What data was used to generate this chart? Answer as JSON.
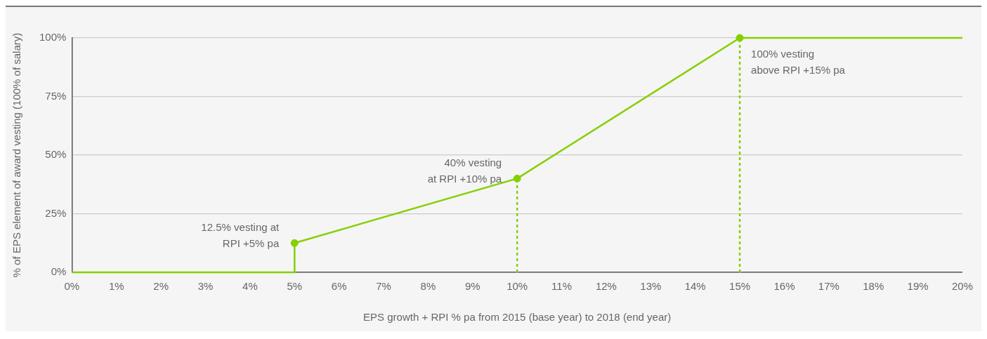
{
  "chart_data": {
    "type": "line",
    "xlabel": "EPS growth + RPI % pa from 2015 (base year) to 2018 (end year)",
    "ylabel": "% of EPS element of award vesting (100% of salary)",
    "xlim": [
      0,
      20
    ],
    "ylim": [
      0,
      100
    ],
    "xticks": [
      {
        "value": 0,
        "label": "0%"
      },
      {
        "value": 1,
        "label": "1%"
      },
      {
        "value": 2,
        "label": "2%"
      },
      {
        "value": 3,
        "label": "3%"
      },
      {
        "value": 4,
        "label": "4%"
      },
      {
        "value": 5,
        "label": "5%"
      },
      {
        "value": 6,
        "label": "6%"
      },
      {
        "value": 7,
        "label": "7%"
      },
      {
        "value": 8,
        "label": "8%"
      },
      {
        "value": 9,
        "label": "9%"
      },
      {
        "value": 10,
        "label": "10%"
      },
      {
        "value": 11,
        "label": "11%"
      },
      {
        "value": 12,
        "label": "12%"
      },
      {
        "value": 13,
        "label": "13%"
      },
      {
        "value": 14,
        "label": "14%"
      },
      {
        "value": 15,
        "label": "15%"
      },
      {
        "value": 16,
        "label": "16%"
      },
      {
        "value": 17,
        "label": "17%"
      },
      {
        "value": 18,
        "label": "18%"
      },
      {
        "value": 19,
        "label": "19%"
      },
      {
        "value": 20,
        "label": "20%"
      }
    ],
    "yticks": [
      {
        "value": 0,
        "label": "0%"
      },
      {
        "value": 25,
        "label": "25%"
      },
      {
        "value": 50,
        "label": "50%"
      },
      {
        "value": 75,
        "label": "75%"
      },
      {
        "value": 100,
        "label": "100%"
      }
    ],
    "grid": "y",
    "legend": false,
    "series": [
      {
        "type": "line",
        "color": "#86d000",
        "marker": "none",
        "line_style": "solid",
        "x": [
          0,
          5,
          5,
          10,
          15,
          20
        ],
        "values": [
          0,
          0,
          12.5,
          40,
          100,
          100
        ]
      },
      {
        "type": "line",
        "color": "#86d000",
        "marker": "none",
        "line_style": "dashed",
        "x": [
          10,
          10
        ],
        "values": [
          0,
          40
        ]
      },
      {
        "type": "line",
        "color": "#86d000",
        "marker": "none",
        "line_style": "dashed",
        "x": [
          15,
          15
        ],
        "values": [
          0,
          100
        ]
      },
      {
        "type": "scatter",
        "color": "#86d000",
        "marker": "circle",
        "x": [
          5,
          10,
          15
        ],
        "values": [
          12.5,
          40,
          100
        ]
      }
    ],
    "annotations": [
      {
        "text": "12.5% vesting at\nRPI +5% pa",
        "x": 5,
        "y": 12.5
      },
      {
        "text": "40% vesting\nat RPI +10% pa",
        "x": 10,
        "y": 40
      },
      {
        "text": "100% vesting\nabove RPI +15% pa",
        "x": 15,
        "y": 100
      }
    ]
  }
}
